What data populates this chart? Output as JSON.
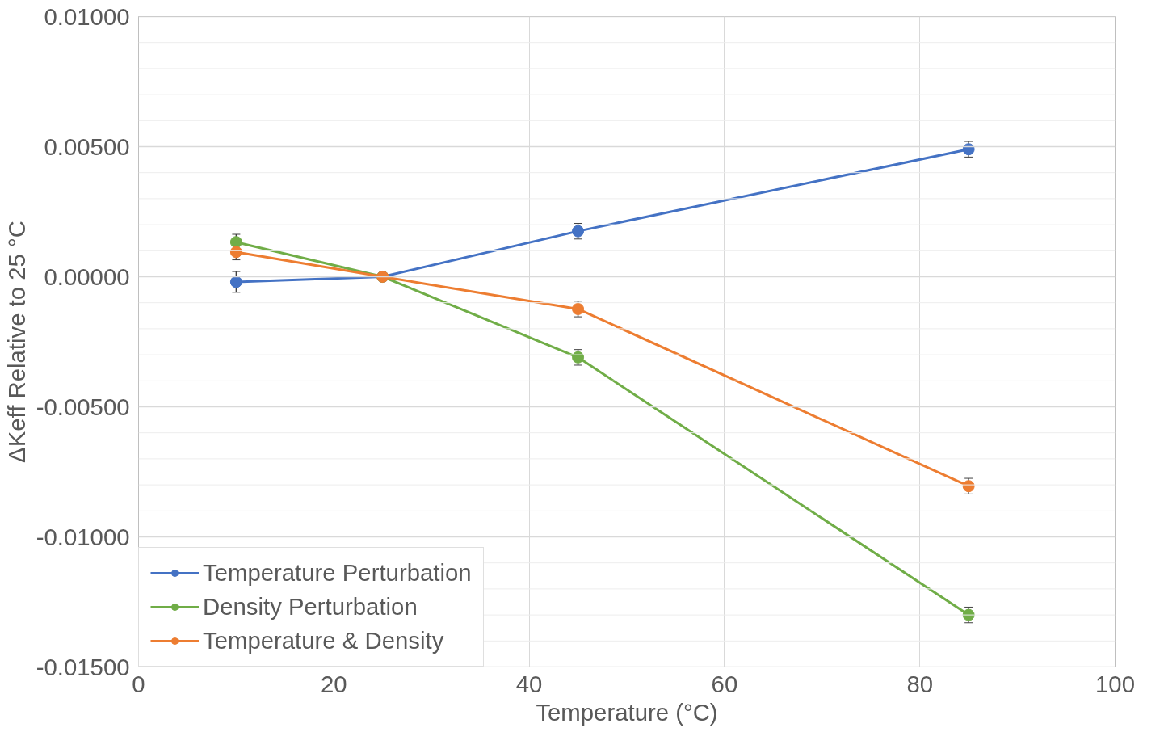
{
  "chart_data": {
    "type": "line",
    "xlabel": "Temperature (°C)",
    "ylabel": "ΔKeff Relative to 25 °C",
    "x": [
      10,
      25,
      45,
      85
    ],
    "series": [
      {
        "name": "Temperature Perturbation",
        "color": "#4472c4",
        "values": [
          -0.0002,
          0,
          0.00175,
          0.0049
        ],
        "errors": [
          0.0004,
          null,
          0.0003,
          0.0003
        ]
      },
      {
        "name": "Density Perturbation",
        "color": "#70ad47",
        "values": [
          0.00133,
          0,
          -0.0031,
          -0.013
        ],
        "errors": [
          0.0003,
          null,
          0.0003,
          0.0003
        ]
      },
      {
        "name": "Temperature & Density",
        "color": "#ed7d31",
        "values": [
          0.00095,
          0,
          -0.00124,
          -0.00805
        ],
        "errors": [
          0.0003,
          null,
          0.0003,
          0.0003
        ]
      }
    ],
    "xlim": [
      0,
      100
    ],
    "xticks": [
      0,
      20,
      40,
      60,
      80,
      100
    ],
    "ylim": [
      -0.015,
      0.01
    ],
    "yticks": [
      {
        "value": -0.015,
        "label": "-0.01500"
      },
      {
        "value": -0.014,
        "label": null
      },
      {
        "value": -0.013,
        "label": null
      },
      {
        "value": -0.012,
        "label": null
      },
      {
        "value": -0.011,
        "label": null
      },
      {
        "value": -0.01,
        "label": "-0.01000"
      },
      {
        "value": -0.009,
        "label": null
      },
      {
        "value": -0.008,
        "label": null
      },
      {
        "value": -0.007,
        "label": null
      },
      {
        "value": -0.006,
        "label": null
      },
      {
        "value": -0.005,
        "label": "-0.00500"
      },
      {
        "value": -0.004,
        "label": null
      },
      {
        "value": -0.003,
        "label": null
      },
      {
        "value": -0.002,
        "label": null
      },
      {
        "value": -0.001,
        "label": null
      },
      {
        "value": 0,
        "label": "0.00000"
      },
      {
        "value": 0.001,
        "label": null
      },
      {
        "value": 0.002,
        "label": null
      },
      {
        "value": 0.003,
        "label": null
      },
      {
        "value": 0.004,
        "label": null
      },
      {
        "value": 0.005,
        "label": "0.00500"
      },
      {
        "value": 0.006,
        "label": null
      },
      {
        "value": 0.007,
        "label": null
      },
      {
        "value": 0.008,
        "label": null
      },
      {
        "value": 0.009,
        "label": null
      },
      {
        "value": 0.01,
        "label": "0.01000"
      }
    ],
    "grid": true,
    "legend": "bottom left",
    "marker": "circle",
    "line_style": "solid"
  }
}
